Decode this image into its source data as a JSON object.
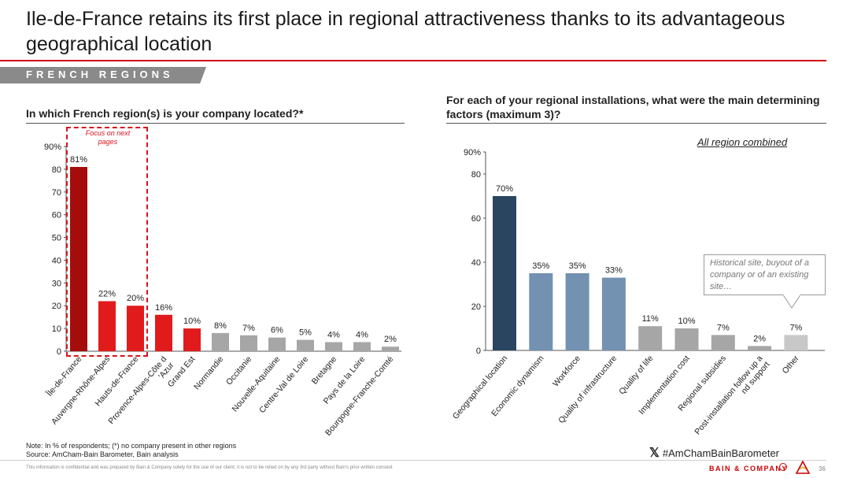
{
  "header": {
    "title": "Ile-de-France retains its first place in regional attractiveness thanks to its advantageous geographical location",
    "section": "FRENCH REGIONS"
  },
  "left": {
    "question": "In which French region(s) is your company located?*",
    "focus_label": "Focus on next pages"
  },
  "right": {
    "question": "For each of your regional installations, what were the main determining factors (maximum 3)?",
    "subtitle": "All region combined",
    "callout": "Historical site, buyout of a company or of an existing site…"
  },
  "colors": {
    "accent": "#cc0000",
    "dark_red": "#a50d0d",
    "red": "#e11b1b",
    "gray_bar": "#a6a6a6",
    "navy": "#2a4560",
    "steel": "#7391b0",
    "light_gray": "#c8c8c8"
  },
  "chart_data": [
    {
      "type": "bar",
      "title": "",
      "xlabel": "",
      "ylabel": "",
      "unit": "%",
      "ylim": [
        0,
        90
      ],
      "yticks": [
        "0",
        "10",
        "20",
        "30",
        "40",
        "50",
        "60",
        "70",
        "80",
        "90%"
      ],
      "grid": false,
      "categories": [
        "Île-de-France",
        "Auvergne-Rhône-Alpes",
        "Hauts-de-France",
        "Provence-Alpes-Côte d'Azur",
        "Grand Est",
        "Normandie",
        "Occitanie",
        "Nouvelle-Aquitaine",
        "Centre-Val de Loire",
        "Bretagne",
        "Pays de la Loire",
        "Bourgogne-Franche-Comté"
      ],
      "values": [
        81,
        22,
        20,
        16,
        10,
        8,
        7,
        6,
        5,
        4,
        4,
        2
      ],
      "labels": [
        "81%",
        "22%",
        "20%",
        "16%",
        "10%",
        "8%",
        "7%",
        "6%",
        "5%",
        "4%",
        "4%",
        "2%"
      ],
      "bar_colors": [
        "#a50d0d",
        "#e11b1b",
        "#e11b1b",
        "#e11b1b",
        "#e11b1b",
        "#a6a6a6",
        "#a6a6a6",
        "#a6a6a6",
        "#a6a6a6",
        "#a6a6a6",
        "#a6a6a6",
        "#a6a6a6"
      ]
    },
    {
      "type": "bar",
      "title": "",
      "xlabel": "",
      "ylabel": "",
      "unit": "%",
      "ylim": [
        0,
        90
      ],
      "yticks": [
        "0",
        "20",
        "40",
        "60",
        "80",
        "90%"
      ],
      "grid": false,
      "categories": [
        "Geographical location",
        "Economic dynamism",
        "Workforce",
        "Quality of infrastructure",
        "Quality of life",
        "Implementation cost",
        "Regional subsidies",
        "Post-installation follow up and support",
        "Other"
      ],
      "values": [
        70,
        35,
        35,
        33,
        11,
        10,
        7,
        2,
        7
      ],
      "labels": [
        "70%",
        "35%",
        "35%",
        "33%",
        "11%",
        "10%",
        "7%",
        "2%",
        "7%"
      ],
      "bar_colors": [
        "#2a4560",
        "#7391b0",
        "#7391b0",
        "#7391b0",
        "#a6a6a6",
        "#a6a6a6",
        "#a6a6a6",
        "#a6a6a6",
        "#c8c8c8"
      ]
    }
  ],
  "footer": {
    "note": "Note: In % of respondents; (*) no company present in other regions",
    "source": "Source: AmCham-Bain Barometer, Bain analysis",
    "hashtag": "#AmChamBainBarometer",
    "x_icon": "𝕏",
    "confidential": "This information is confidential and was prepared by Bain & Company solely for the use of our client; it is not to be relied on by any 3rd party without Bain's prior written consent",
    "brand": "BAIN & COMPANY",
    "page": "36"
  }
}
